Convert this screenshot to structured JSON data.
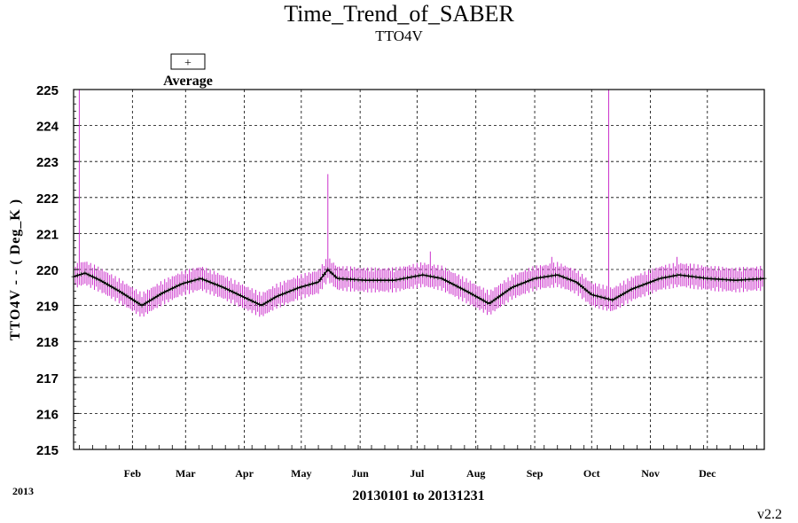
{
  "chart_data": {
    "type": "line",
    "title": "Time_Trend_of_SABER",
    "subtitle": "TTO4V",
    "ylabel": "TTO4V - - ( Deg_K )",
    "xlabel": "20130101 to 20131231",
    "year_label": "2013",
    "version": "v2.2",
    "legend": {
      "symbol": "+",
      "label": "Average",
      "placement": "top-left"
    },
    "ylim": [
      215,
      225
    ],
    "yticks": [
      "215",
      "216",
      "217",
      "218",
      "219",
      "220",
      "221",
      "222",
      "223",
      "224",
      "225"
    ],
    "xlim_days": [
      1,
      365
    ],
    "months": [
      {
        "label": "Feb",
        "day": 32
      },
      {
        "label": "Mar",
        "day": 60
      },
      {
        "label": "Apr",
        "day": 91
      },
      {
        "label": "May",
        "day": 121
      },
      {
        "label": "Jun",
        "day": 152
      },
      {
        "label": "Jul",
        "day": 182
      },
      {
        "label": "Aug",
        "day": 213
      },
      {
        "label": "Sep",
        "day": 244
      },
      {
        "label": "Oct",
        "day": 274
      },
      {
        "label": "Nov",
        "day": 305
      },
      {
        "label": "Dec",
        "day": 335
      }
    ],
    "grid": true,
    "series_color": "#cc33cc",
    "average_color": "#000000",
    "average_keypoints": [
      [
        1,
        219.8
      ],
      [
        7,
        219.9
      ],
      [
        15,
        219.7
      ],
      [
        25,
        219.4
      ],
      [
        37,
        219.0
      ],
      [
        48,
        219.35
      ],
      [
        58,
        219.6
      ],
      [
        68,
        219.75
      ],
      [
        80,
        219.5
      ],
      [
        92,
        219.2
      ],
      [
        100,
        219.0
      ],
      [
        108,
        219.25
      ],
      [
        120,
        219.5
      ],
      [
        130,
        219.65
      ],
      [
        135,
        220.0
      ],
      [
        140,
        219.75
      ],
      [
        155,
        219.7
      ],
      [
        170,
        219.7
      ],
      [
        185,
        219.85
      ],
      [
        195,
        219.75
      ],
      [
        208,
        219.4
      ],
      [
        220,
        219.05
      ],
      [
        232,
        219.5
      ],
      [
        244,
        219.75
      ],
      [
        256,
        219.85
      ],
      [
        266,
        219.65
      ],
      [
        274,
        219.3
      ],
      [
        285,
        219.15
      ],
      [
        295,
        219.45
      ],
      [
        310,
        219.75
      ],
      [
        320,
        219.85
      ],
      [
        335,
        219.75
      ],
      [
        350,
        219.7
      ],
      [
        365,
        219.75
      ]
    ],
    "spikes": [
      {
        "day": 4,
        "high": 225.0
      },
      {
        "day": 135,
        "high": 222.65
      },
      {
        "day": 189,
        "high": 220.5
      },
      {
        "day": 253,
        "high": 220.35
      },
      {
        "day": 283,
        "high": 225.0
      },
      {
        "day": 319,
        "high": 220.35
      }
    ],
    "typical_spread": 0.3
  }
}
